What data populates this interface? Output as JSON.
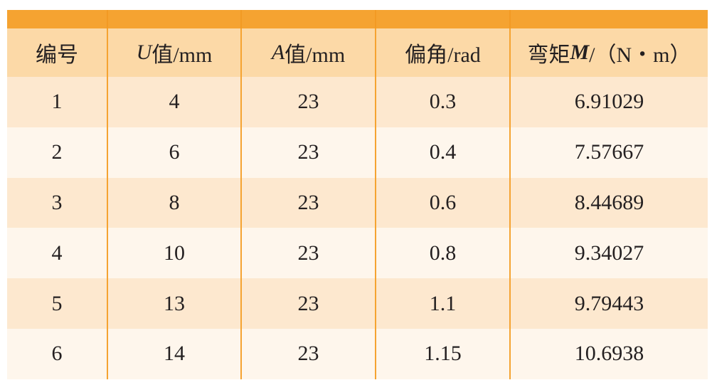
{
  "table": {
    "header": [
      [
        "编号"
      ],
      [
        "U",
        "值/mm"
      ],
      [
        "A",
        "值/mm"
      ],
      [
        "偏角/rad"
      ],
      [
        "弯矩",
        "M",
        "/（N・m）"
      ]
    ],
    "rows": [
      [
        1,
        4,
        23,
        0.3,
        6.91029
      ],
      [
        2,
        6,
        23,
        0.4,
        7.57667
      ],
      [
        3,
        8,
        23,
        0.6,
        8.44689
      ],
      [
        4,
        10,
        23,
        0.8,
        9.34027
      ],
      [
        5,
        13,
        23,
        1.1,
        9.79443
      ],
      [
        6,
        14,
        23,
        1.15,
        10.6938
      ]
    ]
  }
}
